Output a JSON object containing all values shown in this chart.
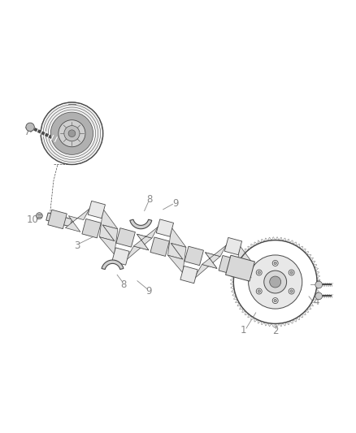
{
  "bg_color": "#ffffff",
  "line_color": "#4a4a4a",
  "label_color": "#888888",
  "fig_width": 4.38,
  "fig_height": 5.33,
  "dpi": 100
}
